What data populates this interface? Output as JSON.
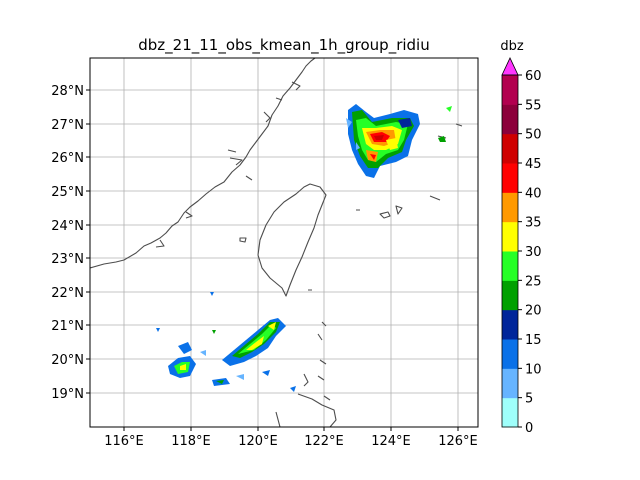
{
  "title": "dbz_21_11_obs_kmean_1h_group_ridiu",
  "colorbar": {
    "unit_label": "dbz",
    "ticks": [
      "0",
      "5",
      "10",
      "15",
      "20",
      "25",
      "30",
      "35",
      "40",
      "45",
      "50",
      "55",
      "60"
    ],
    "colors": [
      "#9ffffb",
      "#66b4ff",
      "#0a71e8",
      "#00259a",
      "#00a000",
      "#26ff26",
      "#ffff00",
      "#ff9900",
      "#ff0000",
      "#cf0000",
      "#8c003b",
      "#b2004f"
    ],
    "extend_color": "#ff36ff"
  },
  "map": {
    "lon_ticks": [
      "116°E",
      "118°E",
      "120°E",
      "122°E",
      "124°E",
      "126°E"
    ],
    "lat_ticks": [
      "19°N",
      "20°N",
      "21°N",
      "22°N",
      "23°N",
      "24°N",
      "25°N",
      "26°N",
      "27°N",
      "28°N"
    ],
    "grid": true
  }
}
